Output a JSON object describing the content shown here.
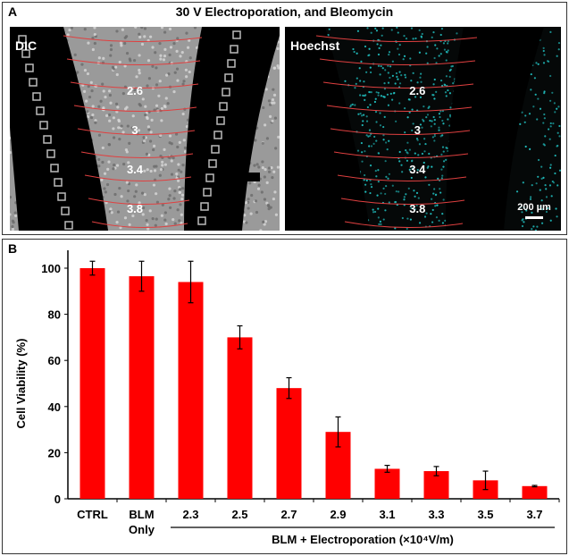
{
  "panel_a": {
    "label": "A",
    "title": "30 V Electroporation, and Bleomycin",
    "left_image": {
      "label": "DIC",
      "zone_labels": [
        "2.6",
        "3",
        "3.4",
        "3.8"
      ]
    },
    "right_image": {
      "label": "Hoechst",
      "zone_labels": [
        "2.6",
        "3",
        "3.4",
        "3.8"
      ],
      "scale_bar": "200 µm",
      "stain_color": "#22c8c8"
    }
  },
  "panel_b": {
    "label": "B"
  },
  "chart_data": {
    "type": "bar",
    "categories": [
      "CTRL",
      "BLM Only",
      "2.3",
      "2.5",
      "2.7",
      "2.9",
      "3.1",
      "3.3",
      "3.5",
      "3.7"
    ],
    "values": [
      100,
      96.5,
      94,
      70,
      48,
      29,
      13,
      12,
      8,
      5.5
    ],
    "errors": [
      3,
      6.5,
      9,
      5,
      4.5,
      6.5,
      1.5,
      2,
      4,
      0.3
    ],
    "ylabel": "Cell Viability (%)",
    "xlabel": "BLM + Electroporation (×10⁴V/m)",
    "group_label_range": [
      "2.3",
      "3.7"
    ],
    "ylim": [
      0,
      110
    ],
    "yticks": [
      0,
      20,
      40,
      60,
      80,
      100
    ],
    "grid": false,
    "bar_color": "#ff0000"
  }
}
